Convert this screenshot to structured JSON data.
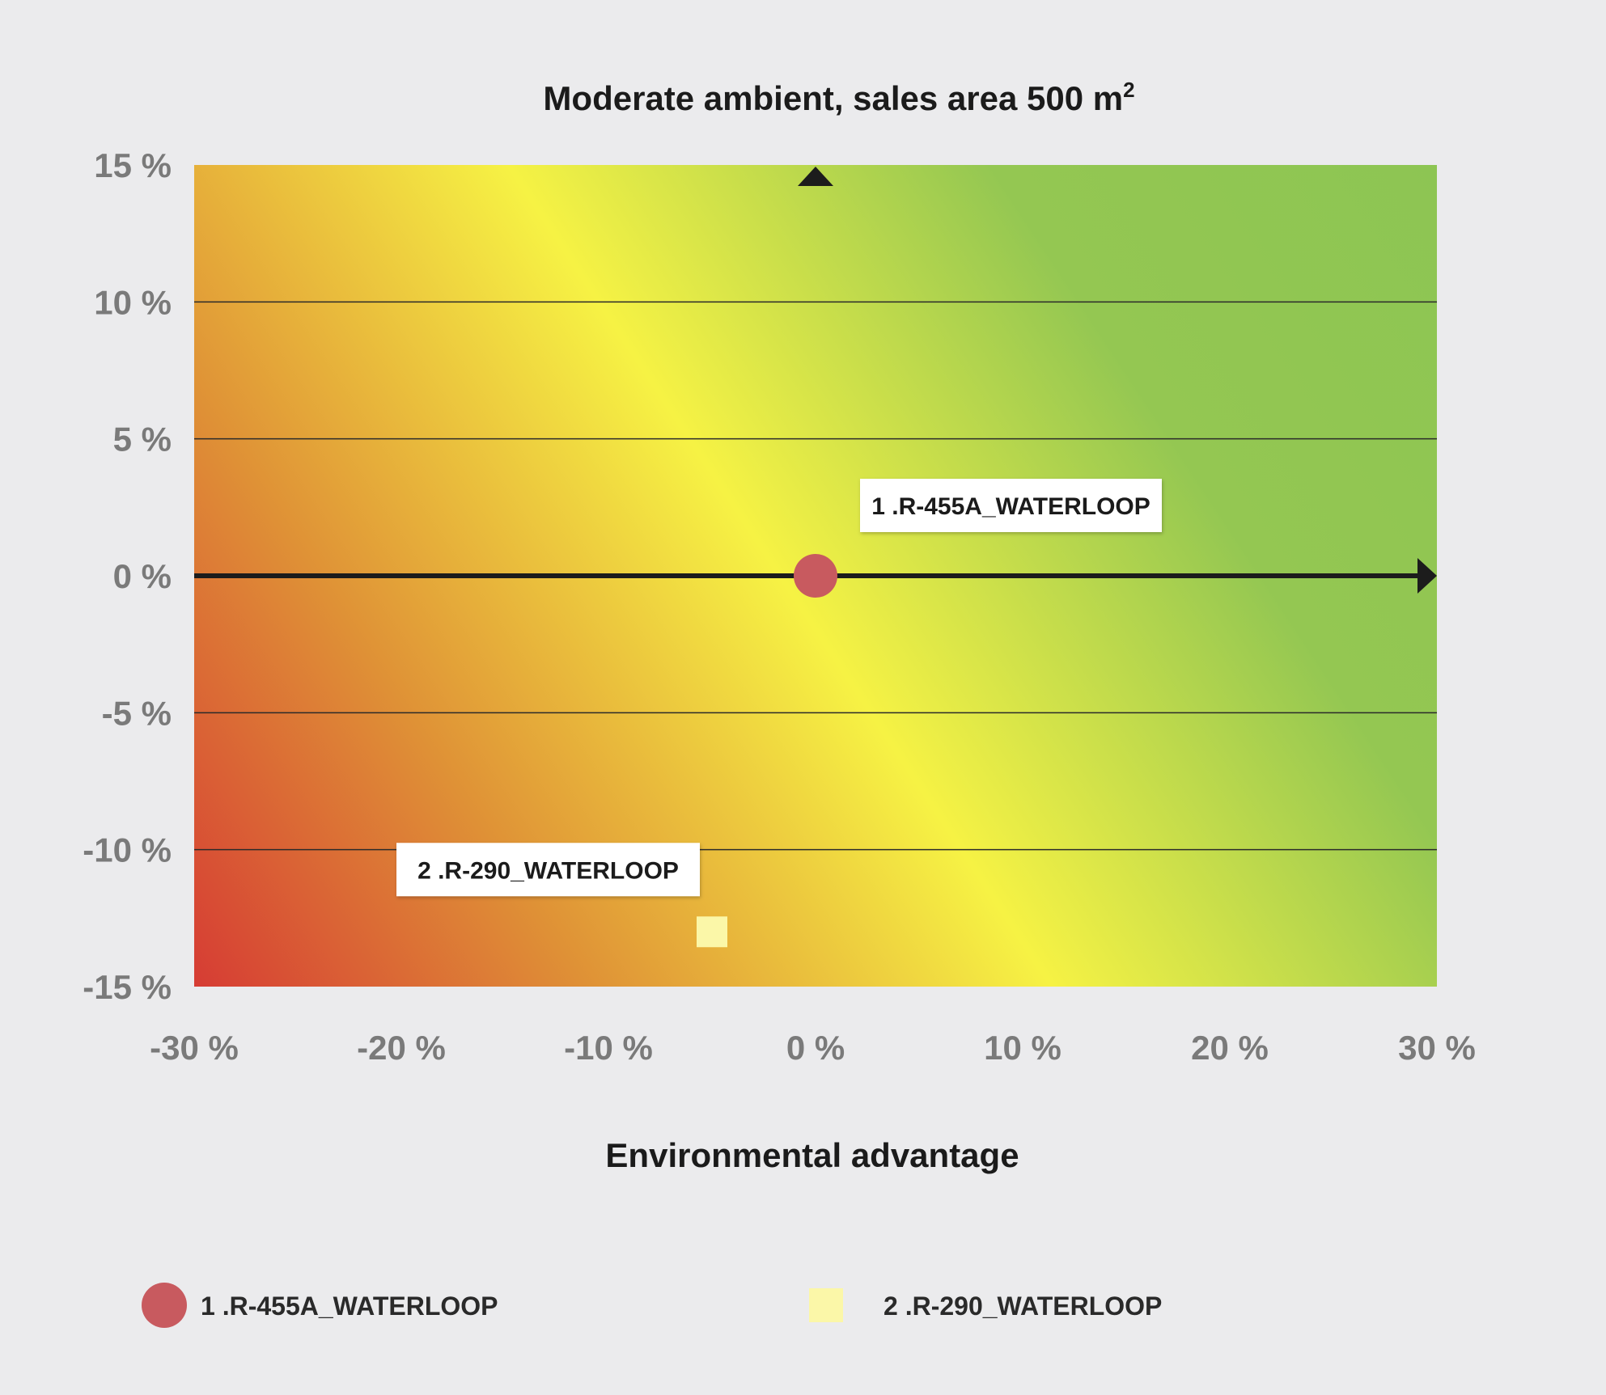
{
  "chart_data": {
    "type": "scatter",
    "title": "Moderate ambient, sales area 500 m",
    "title_superscript": "2",
    "xlabel": "Environmental advantage",
    "ylabel": "",
    "xlim": [
      -30,
      30
    ],
    "ylim": [
      -15,
      15
    ],
    "x_ticks": [
      -30,
      -20,
      -10,
      0,
      10,
      20,
      30
    ],
    "x_tick_labels": [
      "-30 %",
      "-20 %",
      "-10 %",
      "0 %",
      "10 %",
      "20 %",
      "30 %"
    ],
    "y_ticks": [
      15,
      10,
      5,
      0,
      -5,
      -10,
      -15
    ],
    "y_tick_labels": [
      "15 %",
      "10 %",
      "5 %",
      "0 %",
      "-5 %",
      "-10 %",
      "-15 %"
    ],
    "grid": "horizontal",
    "background": "gradient red (bottom-left) to yellow to green (top-right)",
    "legend_position": "bottom",
    "series": [
      {
        "name": "1 .R-455A_WATERLOOP",
        "legend_label": "1  .R-455A_WATERLOOP",
        "marker": "circle",
        "color": "#c85a5f",
        "points": [
          {
            "x": 0,
            "y": 0
          }
        ],
        "callout": "1 .R-455A_WATERLOOP"
      },
      {
        "name": "2 .R-290_WATERLOOP",
        "legend_label": "2  .R-290_WATERLOOP",
        "marker": "square",
        "color": "#fbf7a8",
        "points": [
          {
            "x": -5,
            "y": -13
          }
        ],
        "callout": "2 .R-290_WATERLOOP"
      }
    ]
  }
}
